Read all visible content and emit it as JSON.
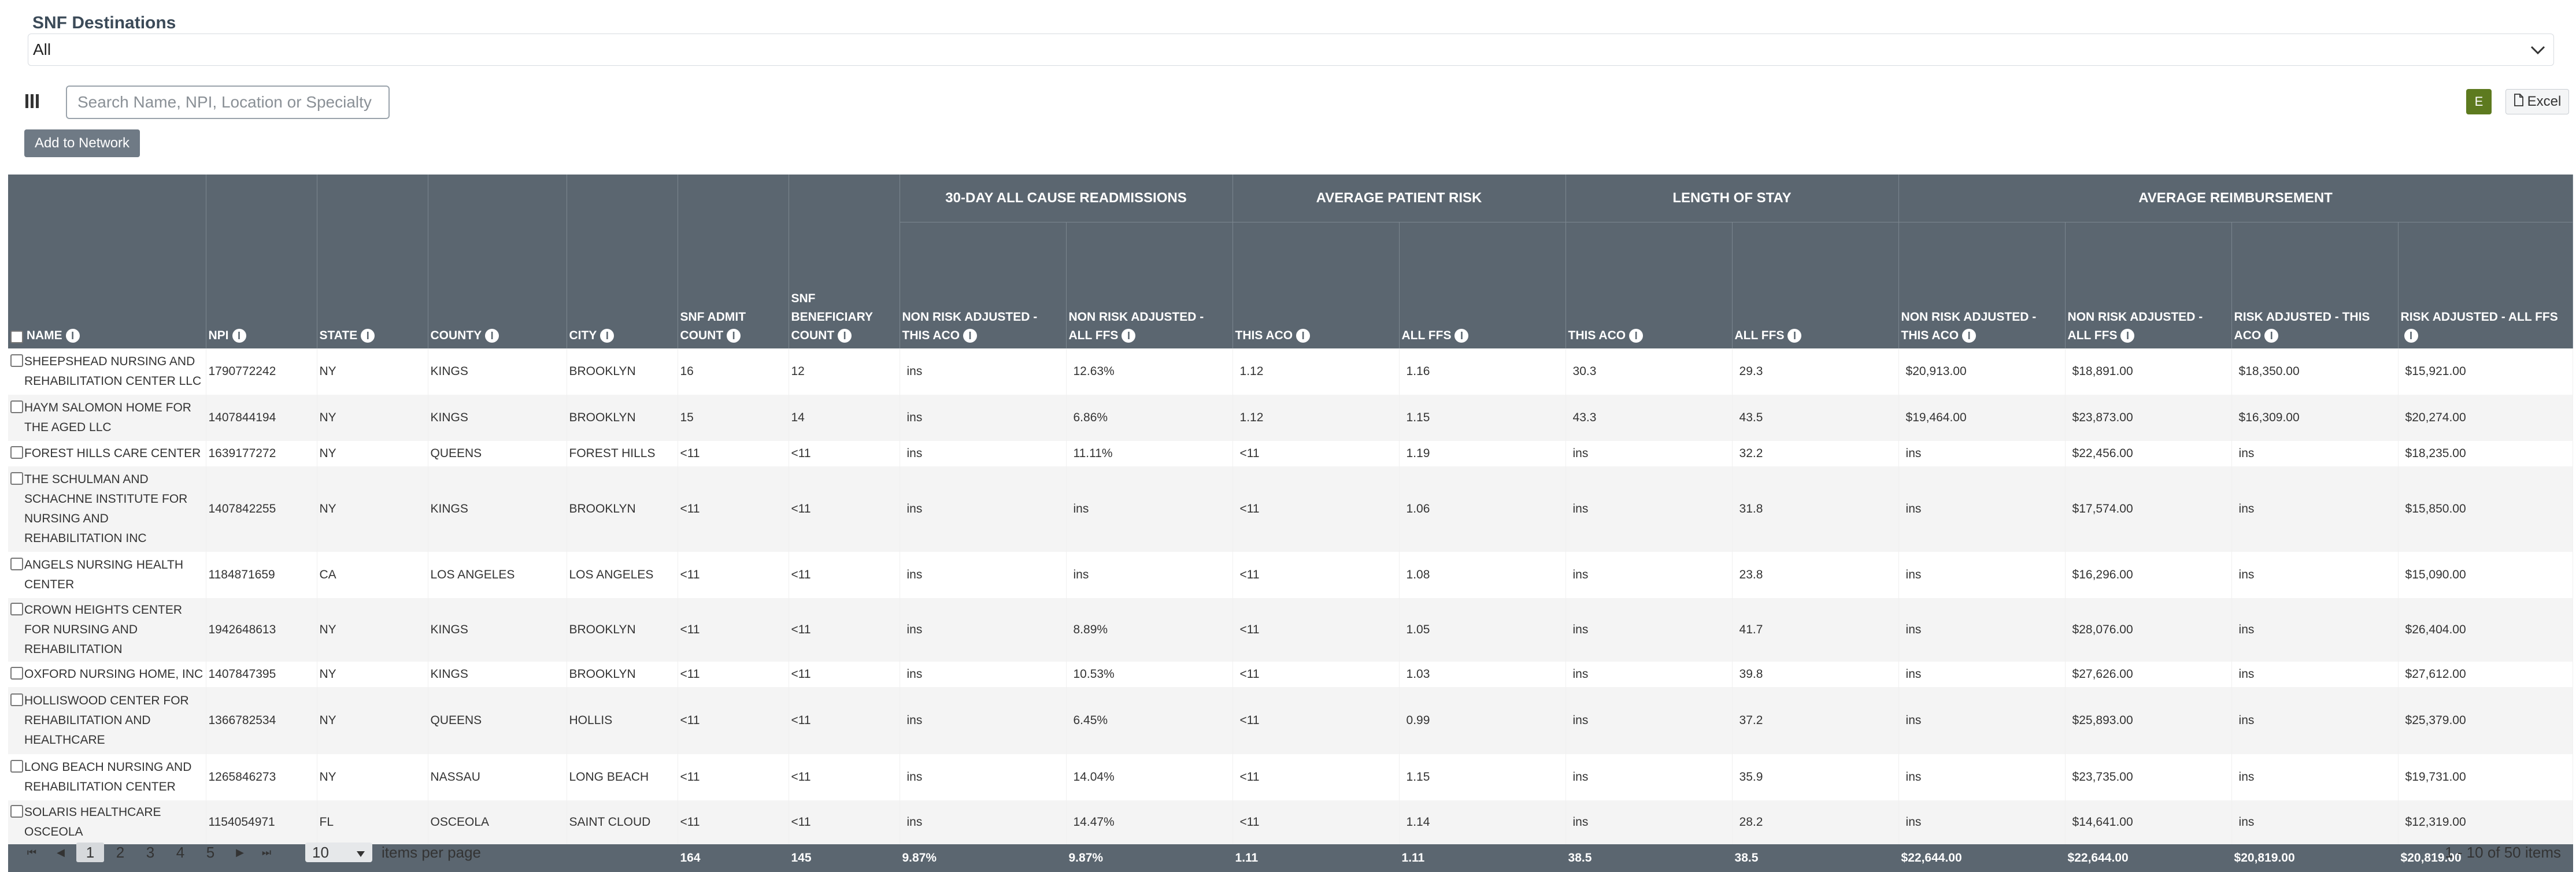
{
  "section": {
    "title": "SNF Destinations",
    "dropdown_value": "All",
    "chevron_icon": "chevron-down-icon"
  },
  "toolbar": {
    "column_toggle_icon": "columns-icon",
    "search_placeholder": "Search Name, NPI, Location or Specialty",
    "e_button_label": "E",
    "excel_label": "Excel",
    "excel_icon": "file-icon",
    "add_to_network_label": "Add to Network"
  },
  "table": {
    "groups": [
      {
        "label": "30-DAY ALL CAUSE READMISSIONS"
      },
      {
        "label": "AVERAGE PATIENT RISK"
      },
      {
        "label": "LENGTH OF STAY"
      },
      {
        "label": "AVERAGE REIMBURSEMENT"
      }
    ],
    "columns": [
      {
        "label": "NAME"
      },
      {
        "label": "NPI"
      },
      {
        "label": "STATE"
      },
      {
        "label": "COUNTY"
      },
      {
        "label": "CITY"
      },
      {
        "label": "SNF ADMIT COUNT"
      },
      {
        "label": "SNF BENEFICIARY COUNT"
      },
      {
        "label": "NON RISK ADJUSTED - THIS ACO"
      },
      {
        "label": "NON RISK ADJUSTED - ALL FFS"
      },
      {
        "label": "THIS ACO"
      },
      {
        "label": "ALL FFS"
      },
      {
        "label": "THIS ACO"
      },
      {
        "label": "ALL FFS"
      },
      {
        "label": "NON RISK ADJUSTED - THIS ACO"
      },
      {
        "label": "NON RISK ADJUSTED - ALL FFS"
      },
      {
        "label": "RISK ADJUSTED - THIS ACO"
      },
      {
        "label": "RISK ADJUSTED - ALL FFS"
      }
    ],
    "rows": [
      [
        "SHEEPSHEAD NURSING AND REHABILITATION CENTER LLC",
        "1790772242",
        "NY",
        "KINGS",
        "BROOKLYN",
        "16",
        "12",
        "ins",
        "12.63%",
        "1.12",
        "1.16",
        "30.3",
        "29.3",
        "$20,913.00",
        "$18,891.00",
        "$18,350.00",
        "$15,921.00"
      ],
      [
        "HAYM SALOMON HOME FOR THE AGED LLC",
        "1407844194",
        "NY",
        "KINGS",
        "BROOKLYN",
        "15",
        "14",
        "ins",
        "6.86%",
        "1.12",
        "1.15",
        "43.3",
        "43.5",
        "$19,464.00",
        "$23,873.00",
        "$16,309.00",
        "$20,274.00"
      ],
      [
        "FOREST HILLS CARE CENTER",
        "1639177272",
        "NY",
        "QUEENS",
        "FOREST HILLS",
        "<11",
        "<11",
        "ins",
        "11.11%",
        "<11",
        "1.19",
        "ins",
        "32.2",
        "ins",
        "$22,456.00",
        "ins",
        "$18,235.00"
      ],
      [
        "THE SCHULMAN AND SCHACHNE INSTITUTE FOR NURSING AND REHABILITATION INC",
        "1407842255",
        "NY",
        "KINGS",
        "BROOKLYN",
        "<11",
        "<11",
        "ins",
        "ins",
        "<11",
        "1.06",
        "ins",
        "31.8",
        "ins",
        "$17,574.00",
        "ins",
        "$15,850.00"
      ],
      [
        "ANGELS NURSING HEALTH CENTER",
        "1184871659",
        "CA",
        "LOS ANGELES",
        "LOS ANGELES",
        "<11",
        "<11",
        "ins",
        "ins",
        "<11",
        "1.08",
        "ins",
        "23.8",
        "ins",
        "$16,296.00",
        "ins",
        "$15,090.00"
      ],
      [
        "CROWN HEIGHTS CENTER FOR NURSING AND REHABILITATION",
        "1942648613",
        "NY",
        "KINGS",
        "BROOKLYN",
        "<11",
        "<11",
        "ins",
        "8.89%",
        "<11",
        "1.05",
        "ins",
        "41.7",
        "ins",
        "$28,076.00",
        "ins",
        "$26,404.00"
      ],
      [
        "OXFORD NURSING HOME, INC",
        "1407847395",
        "NY",
        "KINGS",
        "BROOKLYN",
        "<11",
        "<11",
        "ins",
        "10.53%",
        "<11",
        "1.03",
        "ins",
        "39.8",
        "ins",
        "$27,626.00",
        "ins",
        "$27,612.00"
      ],
      [
        "HOLLISWOOD CENTER FOR REHABILITATION AND HEALTHCARE",
        "1366782534",
        "NY",
        "QUEENS",
        "HOLLIS",
        "<11",
        "<11",
        "ins",
        "6.45%",
        "<11",
        "0.99",
        "ins",
        "37.2",
        "ins",
        "$25,893.00",
        "ins",
        "$25,379.00"
      ],
      [
        "LONG BEACH NURSING AND REHABILITATION CENTER",
        "1265846273",
        "NY",
        "NASSAU",
        "LONG BEACH",
        "<11",
        "<11",
        "ins",
        "14.04%",
        "<11",
        "1.15",
        "ins",
        "35.9",
        "ins",
        "$23,735.00",
        "ins",
        "$19,731.00"
      ],
      [
        "SOLARIS HEALTHCARE OSCEOLA",
        "1154054971",
        "FL",
        "OSCEOLA",
        "SAINT CLOUD",
        "<11",
        "<11",
        "ins",
        "14.47%",
        "<11",
        "1.14",
        "ins",
        "28.2",
        "ins",
        "$14,641.00",
        "ins",
        "$12,319.00"
      ]
    ],
    "totals": [
      "",
      "",
      "",
      "",
      "",
      "164",
      "145",
      "9.87%",
      "9.87%",
      "1.11",
      "1.11",
      "38.5",
      "38.5",
      "$22,644.00",
      "$22,644.00",
      "$20,819.00",
      "$20,819.00"
    ]
  },
  "pager": {
    "first": "⏮",
    "prev": "◀",
    "next": "▶",
    "last": "⏭",
    "pages": [
      "1",
      "2",
      "3",
      "4",
      "5"
    ],
    "active_page": "1",
    "per_page": "10",
    "per_page_label": "items per page",
    "summary": "1 - 10 of 50 items"
  }
}
